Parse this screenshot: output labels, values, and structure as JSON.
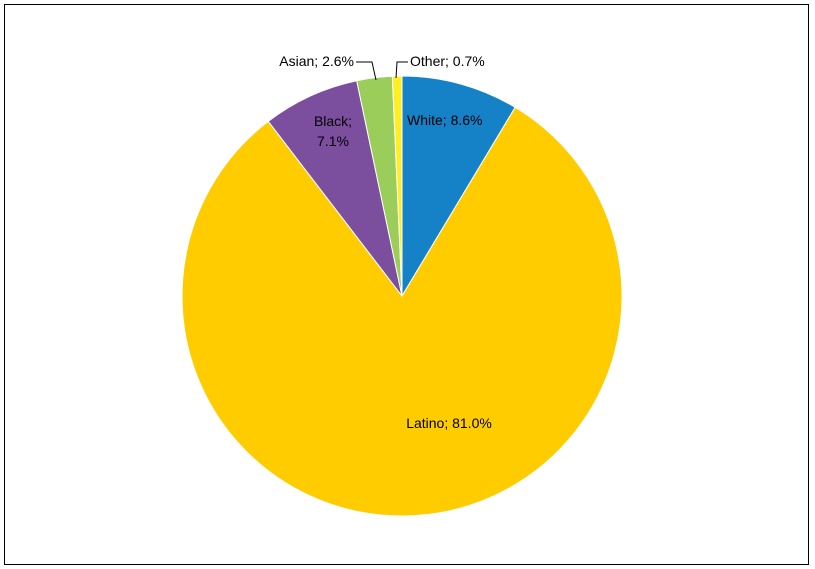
{
  "chart_data": {
    "type": "pie",
    "title": "",
    "slices": [
      {
        "name": "White",
        "value": 8.6,
        "label": "White; 8.6%",
        "color": "#1582C8"
      },
      {
        "name": "Latino",
        "value": 81.0,
        "label": "Latino; 81.0%",
        "color": "#FFCC00"
      },
      {
        "name": "Black",
        "value": 7.1,
        "label": "Black;",
        "label_line2": "7.1%",
        "color": "#7B4F9E"
      },
      {
        "name": "Asian",
        "value": 2.6,
        "label": "Asian; 2.6%",
        "color": "#9ACD5A"
      },
      {
        "name": "Other",
        "value": 0.7,
        "label": "Other; 0.7%",
        "color": "#FFEE22"
      }
    ],
    "legend": "none",
    "start_angle_degrees": 0,
    "direction": "clockwise"
  }
}
